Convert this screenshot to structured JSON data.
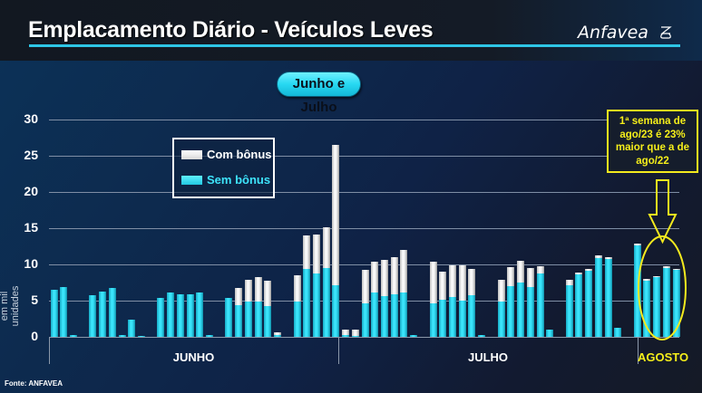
{
  "header": {
    "title": "Emplacamento Diário - Veículos Leves",
    "logo_text": "Anfavea",
    "logo_icon": "anfavea-emblem-icon"
  },
  "period_pill": "Junho e Julho",
  "y_axis": {
    "label": "em mil unidades",
    "ticks": [
      "0",
      "5",
      "10",
      "15",
      "20",
      "25",
      "30"
    ]
  },
  "legend": {
    "items": [
      {
        "label": "Com bônus",
        "color": "#ffffff"
      },
      {
        "label": "Sem bônus",
        "color": "#2fd6ee"
      }
    ]
  },
  "months": [
    "JUNHO",
    "JULHO",
    "AGOSTO"
  ],
  "callout": {
    "line1": "1ª semana de",
    "line2": "ago/23 é 23%",
    "line3": "maior que a de",
    "line4": "ago/22"
  },
  "source": "Fonte: ANFAVEA",
  "colors": {
    "com_bonus": "#ffffff",
    "sem_bonus": "#2fd6ee",
    "highlight": "#f5ee1a",
    "accent_line": "#2ec6e6"
  },
  "chart_data": {
    "type": "bar",
    "stacked": true,
    "title": "Emplacamento Diário - Veículos Leves",
    "subtitle": "Junho e Julho",
    "xlabel": "",
    "ylabel": "em mil unidades",
    "ylim": [
      0,
      30
    ],
    "yticks": [
      0,
      5,
      10,
      15,
      20,
      25,
      30
    ],
    "grid": true,
    "legend_position": "upper-left (inside plot)",
    "month_groups": [
      {
        "label": "JUNHO",
        "start_slot": 0,
        "end_slot": 29
      },
      {
        "label": "JULHO",
        "start_slot": 30,
        "end_slot": 60
      },
      {
        "label": "AGOSTO",
        "start_slot": 61,
        "end_slot": 64
      }
    ],
    "series": [
      {
        "name": "Sem bônus",
        "values": [
          6.5,
          6.9,
          0.2,
          null,
          5.75,
          6.2,
          6.7,
          0.3,
          2.4,
          0.05,
          null,
          5.4,
          6.1,
          5.9,
          5.85,
          6.1,
          0.2,
          null,
          5.4,
          4.4,
          4.9,
          4.9,
          4.3,
          0.3,
          null,
          4.9,
          9.4,
          8.75,
          9.5,
          7.1,
          0.2,
          0.05,
          4.6,
          6.1,
          5.6,
          5.9,
          6.1,
          0.2,
          null,
          4.6,
          5.1,
          5.5,
          5.0,
          5.75,
          0.2,
          null,
          4.9,
          7.0,
          7.5,
          6.9,
          8.75,
          1.0,
          null,
          7.1,
          8.6,
          9.1,
          10.9,
          10.75,
          1.3,
          null,
          12.6,
          7.75,
          8.25,
          9.5,
          9.2
        ]
      },
      {
        "name": "Com bônus (total)",
        "values": [
          6.5,
          6.9,
          0.2,
          null,
          5.75,
          6.2,
          6.7,
          0.3,
          2.4,
          0.05,
          null,
          5.4,
          6.1,
          5.9,
          5.85,
          6.1,
          0.2,
          null,
          5.4,
          6.7,
          7.9,
          8.25,
          7.75,
          0.6,
          null,
          8.5,
          14.0,
          14.1,
          15.1,
          26.5,
          1.0,
          1.0,
          9.25,
          10.4,
          10.6,
          11.0,
          12.0,
          0.2,
          null,
          10.4,
          9.0,
          9.9,
          9.9,
          9.4,
          0.2,
          null,
          7.9,
          9.6,
          10.5,
          9.5,
          9.75,
          1.0,
          null,
          7.9,
          8.9,
          9.4,
          11.2,
          11.0,
          1.3,
          null,
          12.9,
          7.95,
          8.4,
          9.7,
          9.4
        ]
      }
    ],
    "annotations": [
      "1ª semana de ago/23 é 23% maior que a de ago/22",
      "Yellow ellipse highlights first August bars with arrow pointing down from callout"
    ]
  }
}
